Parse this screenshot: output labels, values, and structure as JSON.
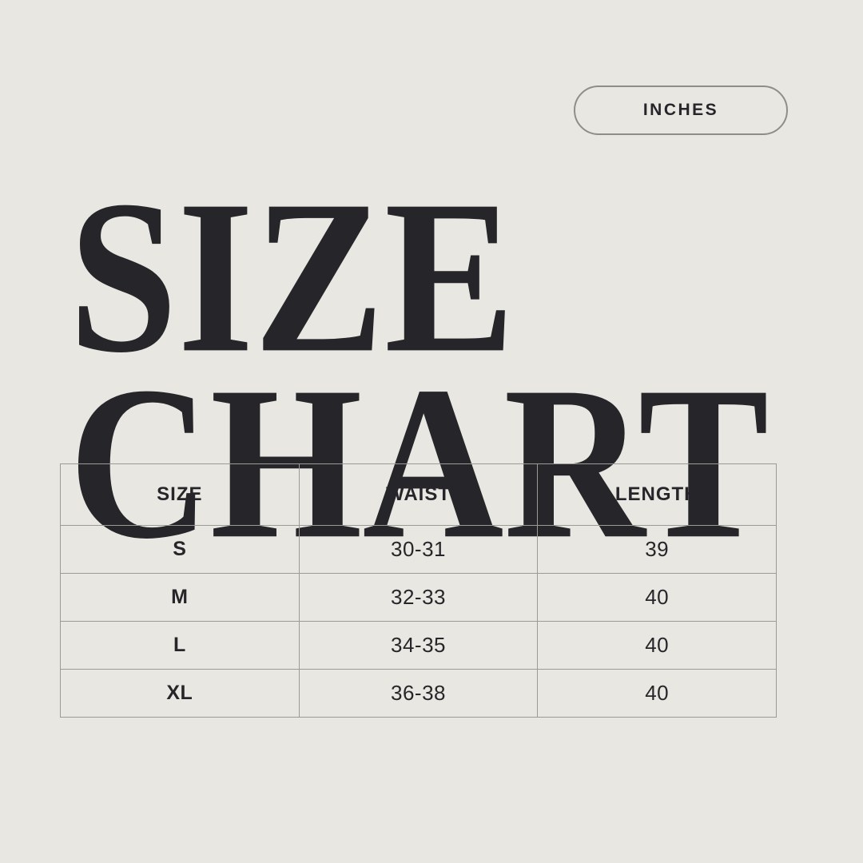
{
  "page": {
    "background_color": "#e9e7e2",
    "text_color": "#26262a",
    "border_color": "#9b9b95"
  },
  "title": {
    "line1": "SIZE",
    "line2": "CHART"
  },
  "unit_badge": {
    "label": "INCHES"
  },
  "table": {
    "headers": [
      "SIZE",
      "WAIST",
      "LENGTH"
    ],
    "rows": [
      {
        "size": "S",
        "waist": "30-31",
        "length": "39"
      },
      {
        "size": "M",
        "waist": "32-33",
        "length": "40"
      },
      {
        "size": "L",
        "waist": "34-35",
        "length": "40"
      },
      {
        "size": "XL",
        "waist": "36-38",
        "length": "40"
      }
    ]
  },
  "chart_data": {
    "type": "table",
    "title": "SIZE CHART",
    "unit": "INCHES",
    "columns": [
      "SIZE",
      "WAIST",
      "LENGTH"
    ],
    "rows": [
      [
        "S",
        "30-31",
        "39"
      ],
      [
        "M",
        "32-33",
        "40"
      ],
      [
        "L",
        "34-35",
        "40"
      ],
      [
        "XL",
        "36-38",
        "40"
      ]
    ]
  }
}
